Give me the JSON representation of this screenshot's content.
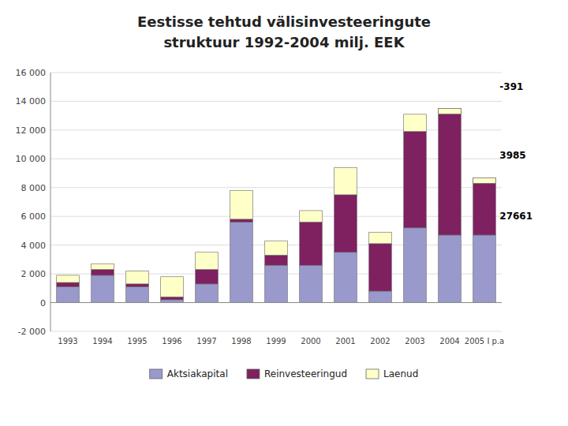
{
  "chart_data": {
    "type": "bar",
    "stacked": true,
    "title": "Eestisse tehtud välisinvesteeringute",
    "subtitle": "struktuur 1992-2004 milj. EEK",
    "categories": [
      "1993",
      "1994",
      "1995",
      "1996",
      "1997",
      "1998",
      "1999",
      "2000",
      "2001",
      "2002",
      "2003",
      "2004",
      "2005 I p.a"
    ],
    "series": [
      {
        "name": "Aktsiakapital",
        "color": "#9999cc",
        "values": [
          1100,
          1900,
          1100,
          200,
          1300,
          5600,
          2600,
          2600,
          3500,
          800,
          5200,
          4700,
          4700
        ]
      },
      {
        "name": "Reinvesteeringud",
        "color": "#7f2060",
        "values": [
          300,
          400,
          200,
          200,
          1000,
          200,
          700,
          3000,
          4000,
          3300,
          6700,
          8800,
          3985
        ]
      },
      {
        "name": "Laenud",
        "color": "#ffffc8",
        "values": [
          500,
          400,
          900,
          1400,
          1200,
          2000,
          1000,
          800,
          1900,
          800,
          1200,
          -391,
          -391
        ]
      }
    ],
    "ylim": [
      -2000,
      16000
    ],
    "yticks": [
      {
        "value": -2000,
        "label": "-2 000"
      },
      0,
      {
        "value": 2000,
        "label": "2 000"
      },
      {
        "value": 4000,
        "label": "4 000"
      },
      {
        "value": 6000,
        "label": "6 000"
      },
      {
        "value": 8000,
        "label": "8 000"
      },
      {
        "value": 10000,
        "label": "10 000"
      },
      {
        "value": 12000,
        "label": "12 000"
      },
      {
        "value": 14000,
        "label": "14 000"
      },
      {
        "value": 16000,
        "label": "16 000"
      }
    ],
    "annotations": [
      {
        "text": "-391",
        "y": 14800
      },
      {
        "text": "3985",
        "y": 10000
      },
      {
        "text": "27661",
        "y": 5800
      }
    ],
    "grid": true,
    "legend": "bottom"
  }
}
